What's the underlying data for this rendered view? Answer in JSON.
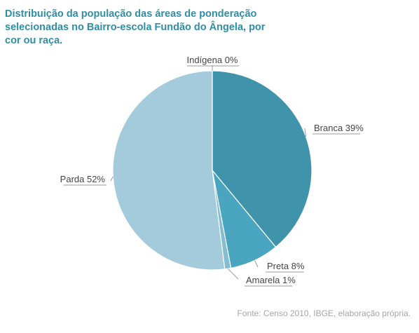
{
  "chart_data": {
    "type": "pie",
    "title": "Distribuição da população das áreas de ponderação selecionadas no Bairro-escola Fundão do Ângela, por cor ou raça.",
    "categories": [
      "Branca",
      "Preta",
      "Amarela",
      "Indígena",
      "Parda"
    ],
    "values": [
      39,
      8,
      1,
      0,
      52
    ],
    "labels": [
      "Branca 39%",
      "Preta 8%",
      "Amarela 1%",
      "Indígena 0%",
      "Parda 52%"
    ],
    "colors": [
      "#3f93ab",
      "#4aa6c0",
      "#82bdd0",
      "#c9e2ec",
      "#a3cbdb"
    ],
    "legend": "none"
  },
  "source": "Fonte: Censo 2010, IBGE, elaboração própria."
}
